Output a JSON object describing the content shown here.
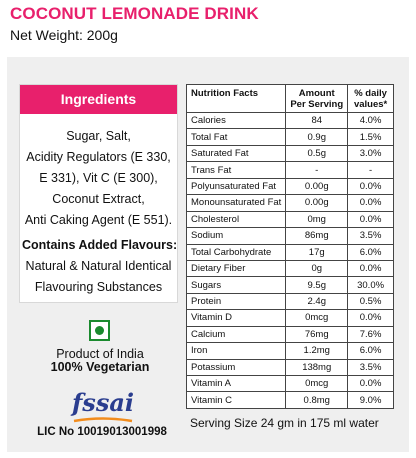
{
  "product": {
    "title": "COCONUT LEMONADE DRINK",
    "net_weight": "Net Weight: 200g"
  },
  "ingredients": {
    "header": "Ingredients",
    "lines": [
      "Sugar, Salt,",
      "Acidity Regulators (E 330,",
      "E 331), Vit C (E 300),",
      "Coconut Extract,",
      "Anti Caking Agent (E 551)."
    ],
    "flavour_title": "Contains Added Flavours:",
    "flavour_lines": [
      "Natural & Natural Identical",
      "Flavouring Substances"
    ]
  },
  "origin": {
    "product_of": "Product of India",
    "veg_label": "100% Vegetarian"
  },
  "fssai": {
    "logo_text": "fssai",
    "license": "LIC No 10019013001998"
  },
  "nutrition": {
    "headers": [
      "Nutrition Facts",
      "Amount\nPer Serving",
      "% daily\nvalues*"
    ],
    "rows": [
      [
        "Calories",
        "84",
        "4.0%"
      ],
      [
        "Total Fat",
        "0.9g",
        "1.5%"
      ],
      [
        "Saturated Fat",
        "0.5g",
        "3.0%"
      ],
      [
        "Trans Fat",
        "-",
        "-"
      ],
      [
        "Polyunsaturated Fat",
        "0.00g",
        "0.0%"
      ],
      [
        "Monounsaturated Fat",
        "0.00g",
        "0.0%"
      ],
      [
        "Cholesterol",
        "0mg",
        "0.0%"
      ],
      [
        "Sodium",
        "86mg",
        "3.5%"
      ],
      [
        "Total Carbohydrate",
        "17g",
        "6.0%"
      ],
      [
        "Dietary Fiber",
        "0g",
        "0.0%"
      ],
      [
        "Sugars",
        "9.5g",
        "30.0%"
      ],
      [
        "Protein",
        "2.4g",
        "0.5%"
      ],
      [
        "Vitamin D",
        "0mcg",
        "0.0%"
      ],
      [
        "Calcium",
        "76mg",
        "7.6%"
      ],
      [
        "Iron",
        "1.2mg",
        "6.0%"
      ],
      [
        "Potassium",
        "138mg",
        "3.5%"
      ],
      [
        "Vitamin A",
        "0mcg",
        "0.0%"
      ],
      [
        "Vitamin C",
        "0.8mg",
        "9.0%"
      ]
    ],
    "serving_size": "Serving Size 24 gm in 175 ml water"
  },
  "colors": {
    "brand": "#e8206c",
    "veg_green": "#1a8a2e",
    "fssai_blue": "#2a3d8f",
    "fssai_orange": "#f28c1c",
    "panel_bg": "#efefef"
  },
  "icons": {
    "veg_mark": "veg-symbol-icon",
    "fssai_logo": "fssai-logo"
  }
}
